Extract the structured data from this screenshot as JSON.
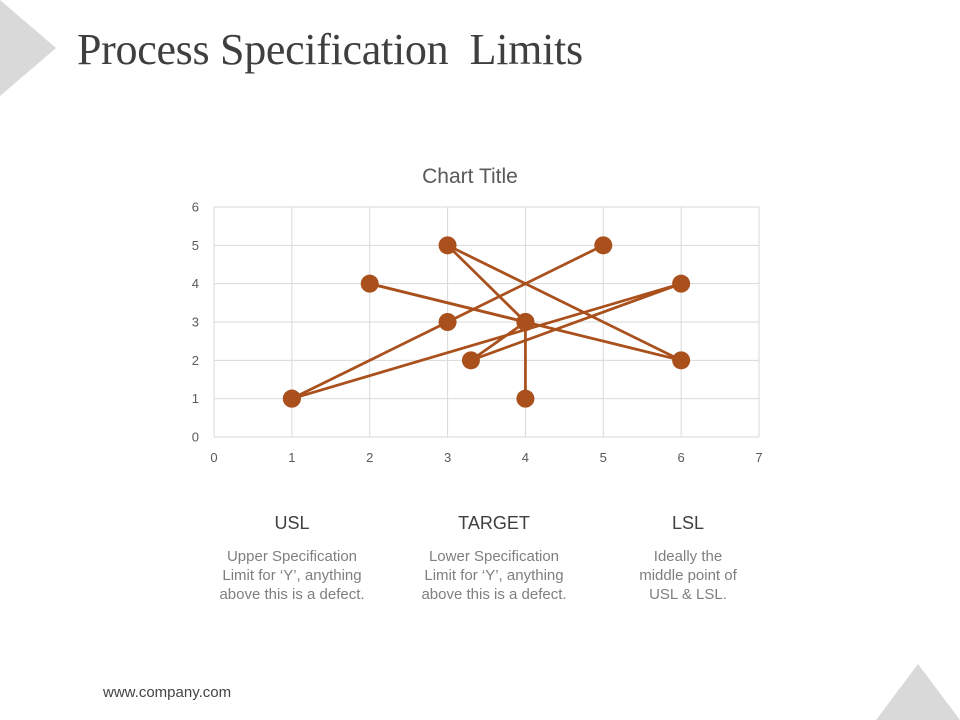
{
  "page": {
    "title": "Process Specification  Limits",
    "footer_url": "www.company.com"
  },
  "columns": [
    {
      "heading": "USL",
      "desc_lines": [
        "Upper Specification",
        "Limit for ‘Y’, anything",
        "above this is a defect."
      ]
    },
    {
      "heading": "TARGET",
      "desc_lines": [
        "Lower Specification",
        "Limit for ‘Y’, anything",
        "above this is a defect."
      ]
    },
    {
      "heading": "LSL",
      "desc_lines": [
        "Ideally the",
        "middle point of",
        "USL & LSL."
      ]
    }
  ],
  "colors": {
    "series": "#a9501c",
    "grid": "#d9d9d9",
    "corner_triangle": "#d9d9d9",
    "title_text": "#3f3f3f",
    "axis_text": "#595959"
  },
  "chart_data": {
    "type": "scatter",
    "title": "Chart Title",
    "xlabel": "",
    "ylabel": "",
    "xlim": [
      0,
      7
    ],
    "ylim": [
      0,
      6
    ],
    "x_ticks": [
      "0",
      "1",
      "2",
      "3",
      "4",
      "5",
      "6",
      "7"
    ],
    "y_ticks": [
      "0",
      "1",
      "2",
      "3",
      "4",
      "5",
      "6"
    ],
    "grid": true,
    "legend": false,
    "series": [
      {
        "style": "lines-and-markers",
        "points": [
          {
            "x": 1,
            "y": 1
          },
          {
            "x": 6,
            "y": 4
          },
          {
            "x": 3.3,
            "y": 2
          },
          {
            "x": 4,
            "y": 3
          },
          {
            "x": 3,
            "y": 5
          },
          {
            "x": 6,
            "y": 2
          },
          {
            "x": 2,
            "y": 4
          },
          {
            "x": 4,
            "y": 3
          },
          {
            "x": 4,
            "y": 1
          }
        ]
      },
      {
        "style": "lines-and-markers",
        "points": [
          {
            "x": 1,
            "y": 1
          },
          {
            "x": 3,
            "y": 3
          },
          {
            "x": 5,
            "y": 5
          }
        ]
      }
    ]
  }
}
